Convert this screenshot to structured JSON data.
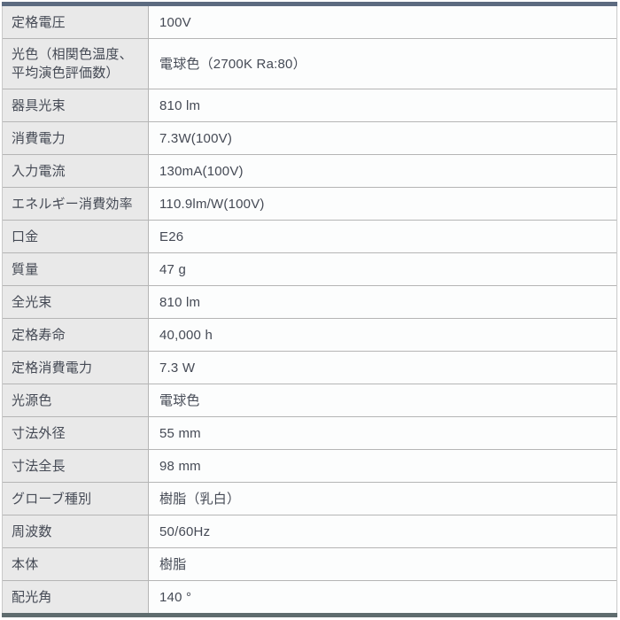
{
  "table": {
    "rows": [
      {
        "label": "定格電圧",
        "value": "100V"
      },
      {
        "label": "光色（相関色温度、平均演色評価数）",
        "value": "電球色（2700K Ra:80）"
      },
      {
        "label": "器具光束",
        "value": "810 lm"
      },
      {
        "label": "消費電力",
        "value": "7.3W(100V)"
      },
      {
        "label": "入力電流",
        "value": "130mA(100V)"
      },
      {
        "label": "エネルギー消費効率",
        "value": "110.9lm/W(100V)"
      },
      {
        "label": "口金",
        "value": "E26"
      },
      {
        "label": "質量",
        "value": "47 g"
      },
      {
        "label": "全光束",
        "value": "810 lm"
      },
      {
        "label": "定格寿命",
        "value": "40,000 h"
      },
      {
        "label": "定格消費電力",
        "value": "7.3 W"
      },
      {
        "label": "光源色",
        "value": "電球色"
      },
      {
        "label": "寸法外径",
        "value": "55 mm"
      },
      {
        "label": "寸法全長",
        "value": "98 mm"
      },
      {
        "label": "グローブ種別",
        "value": "樹脂（乳白）"
      },
      {
        "label": "周波数",
        "value": "50/60Hz"
      },
      {
        "label": "本体",
        "value": "樹脂"
      },
      {
        "label": "配光角",
        "value": "140 °"
      }
    ]
  },
  "colors": {
    "top_bar": "#5c6b80",
    "bottom_bar": "#5f6c6e",
    "label_cell_background": "#e9e9e9",
    "value_cell_background": "#fcfdfd",
    "row_border": "#b5b5b5",
    "text": "#454a55"
  }
}
